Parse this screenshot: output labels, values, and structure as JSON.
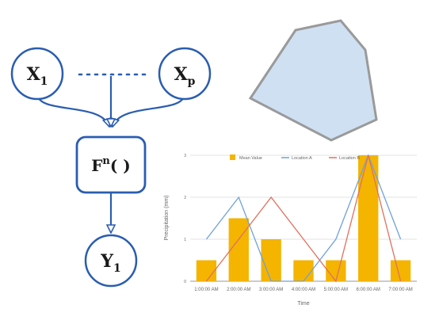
{
  "diagram": {
    "nodes": {
      "x1": {
        "base": "X",
        "sub": "1"
      },
      "xp": {
        "base": "X",
        "sub": "p"
      },
      "f": {
        "base": "F",
        "sup": "n",
        "tail": "( )"
      },
      "y1": {
        "base": "Y",
        "sub": "1"
      }
    },
    "colors": {
      "stroke": "#2a5db0",
      "polygon_fill": "#cfe0f3",
      "polygon_stroke": "#9a9a9a"
    }
  },
  "chart_data": {
    "type": "bar",
    "categories": [
      "1:00:00 AM",
      "2:00:00 AM",
      "3:00:00 AM",
      "4:00:00 AM",
      "5:00:00 AM",
      "6:00:00 AM",
      "7:00:00 AM"
    ],
    "series": [
      {
        "name": "Mean Value",
        "type": "bar",
        "color": "#f4b400",
        "values": [
          0.5,
          1.5,
          1.0,
          0.5,
          0.5,
          3.0,
          0.5
        ]
      },
      {
        "name": "Location A",
        "type": "line",
        "color": "#6fa1dc",
        "values": [
          1,
          2,
          0,
          0,
          1,
          3,
          1
        ]
      },
      {
        "name": "Location B",
        "type": "line",
        "color": "#e0705f",
        "values": [
          0,
          1,
          2,
          1,
          0,
          3,
          0
        ]
      }
    ],
    "xlabel": "Time",
    "ylabel": "Precipitation (mm)",
    "ylim": [
      0,
      3
    ],
    "yticks": [
      "0",
      "1",
      "2",
      "3"
    ],
    "grid": true,
    "legend": "top"
  }
}
